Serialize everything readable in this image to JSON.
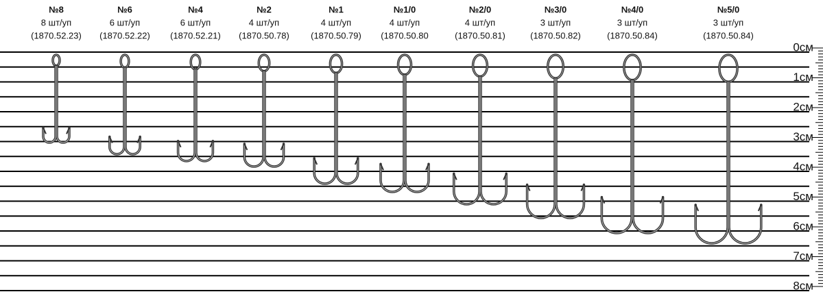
{
  "hooks": [
    {
      "size": "№8",
      "pack": "8 шт/уп",
      "code": "(1870.52.23)"
    },
    {
      "size": "№6",
      "pack": "6 шт/уп",
      "code": "(1870.52.22)"
    },
    {
      "size": "№4",
      "pack": "6 шт/уп",
      "code": "(1870.52.21)"
    },
    {
      "size": "№2",
      "pack": "4 шт/уп",
      "code": "(1870.50.78)"
    },
    {
      "size": "№1",
      "pack": "4 шт/уп",
      "code": "(1870.50.79)"
    },
    {
      "size": "№1/0",
      "pack": "4 шт/уп",
      "code": "(1870.50.80"
    },
    {
      "size": "№2/0",
      "pack": "4 шт/уп",
      "code": "(1870.50.81)"
    },
    {
      "size": "№3/0",
      "pack": "3 шт/уп",
      "code": "(1870.50.82)"
    },
    {
      "size": "№4/0",
      "pack": "3 шт/уп",
      "code": "(1870.50.84)"
    },
    {
      "size": "№5/0",
      "pack": "3 шт/уп",
      "code": "(1870.50.84)"
    }
  ],
  "ruler": [
    "0см",
    "1см",
    "2см",
    "3см",
    "4см",
    "5см",
    "6см",
    "7см",
    "8см"
  ]
}
